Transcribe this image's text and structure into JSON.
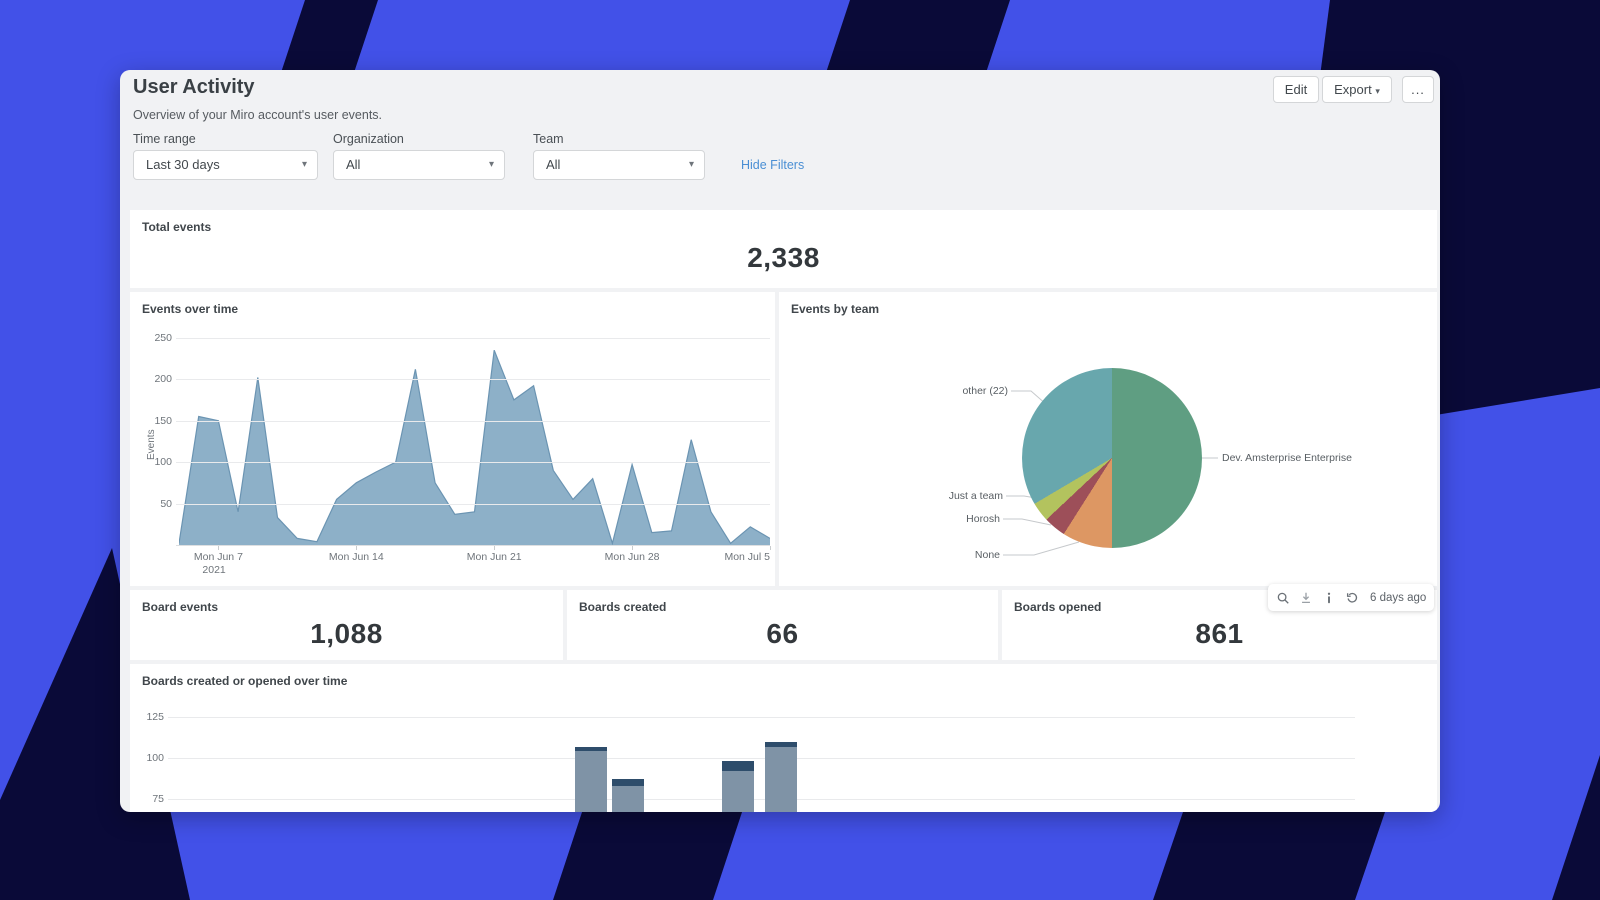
{
  "frame": {
    "bg_color": "#4251e8",
    "stripe_color": "#0a0a38"
  },
  "header": {
    "title": "User Activity",
    "subtitle": "Overview of your Miro account's user events.",
    "buttons": {
      "edit": "Edit",
      "export": "Export",
      "more": "..."
    },
    "hide_filters": "Hide Filters",
    "filters": [
      {
        "label": "Time range",
        "value": "Last 30 days"
      },
      {
        "label": "Organization",
        "value": "All"
      },
      {
        "label": "Team",
        "value": "All"
      }
    ]
  },
  "kpis": {
    "total_events": {
      "label": "Total events",
      "value": "2,338"
    },
    "board_events": {
      "label": "Board events",
      "value": "1,088"
    },
    "boards_created": {
      "label": "Boards created",
      "value": "66"
    },
    "boards_opened": {
      "label": "Boards opened",
      "value": "861"
    }
  },
  "toolbar": {
    "age": "6 days ago",
    "icons": [
      "search",
      "download",
      "info",
      "history"
    ]
  },
  "chart_data": [
    {
      "id": "events_over_time",
      "type": "area",
      "title": "Events over time",
      "ylabel": "Events",
      "yticks": [
        50,
        100,
        150,
        200,
        250
      ],
      "ylim": [
        0,
        260
      ],
      "xticks": [
        "Mon Jun 7",
        "Mon Jun 14",
        "Mon Jun 21",
        "Mon Jun 28",
        "Mon Jul 5"
      ],
      "xtick_sub": "2021",
      "grid": true,
      "values": [
        2,
        155,
        150,
        40,
        202,
        33,
        8,
        4,
        55,
        75,
        88,
        100,
        212,
        75,
        37,
        40,
        235,
        175,
        192,
        90,
        55,
        80,
        2,
        97,
        15,
        17,
        127,
        40,
        2,
        22,
        8
      ],
      "fill_color": "#8db0c8",
      "line_color": "#6b94b2"
    },
    {
      "id": "events_by_team",
      "type": "pie",
      "title": "Events by team",
      "legend_position": "callout-labels",
      "slices": [
        {
          "label": "Dev. Amsterprise Enterprise",
          "pct": 50,
          "color": "#5f9e82"
        },
        {
          "label": "None",
          "pct": 9,
          "color": "#dd9763"
        },
        {
          "label": "Horosh",
          "pct": 4,
          "color": "#9d4f59"
        },
        {
          "label": "Just a team",
          "pct": 3.5,
          "color": "#b3c35e"
        },
        {
          "label": "other (22)",
          "pct": 33.5,
          "color": "#68a7ad"
        }
      ]
    },
    {
      "id": "boards_over_time",
      "type": "stacked-bar",
      "title": "Boards created or opened over time",
      "yticks": [
        75,
        100,
        125
      ],
      "grid": true,
      "note": "chart clipped at dashboard bottom; x axis not visible",
      "series_colors": {
        "body": "#7f93a6",
        "cap": "#2e4d6b"
      },
      "groups": [
        {
          "bars": [
            {
              "total": 107,
              "cap": 3
            },
            {
              "total": 87,
              "cap": 4
            }
          ]
        },
        {
          "bars": [
            {
              "total": 98,
              "cap": 6
            },
            {
              "total": 110,
              "cap": 3
            }
          ]
        }
      ]
    }
  ]
}
